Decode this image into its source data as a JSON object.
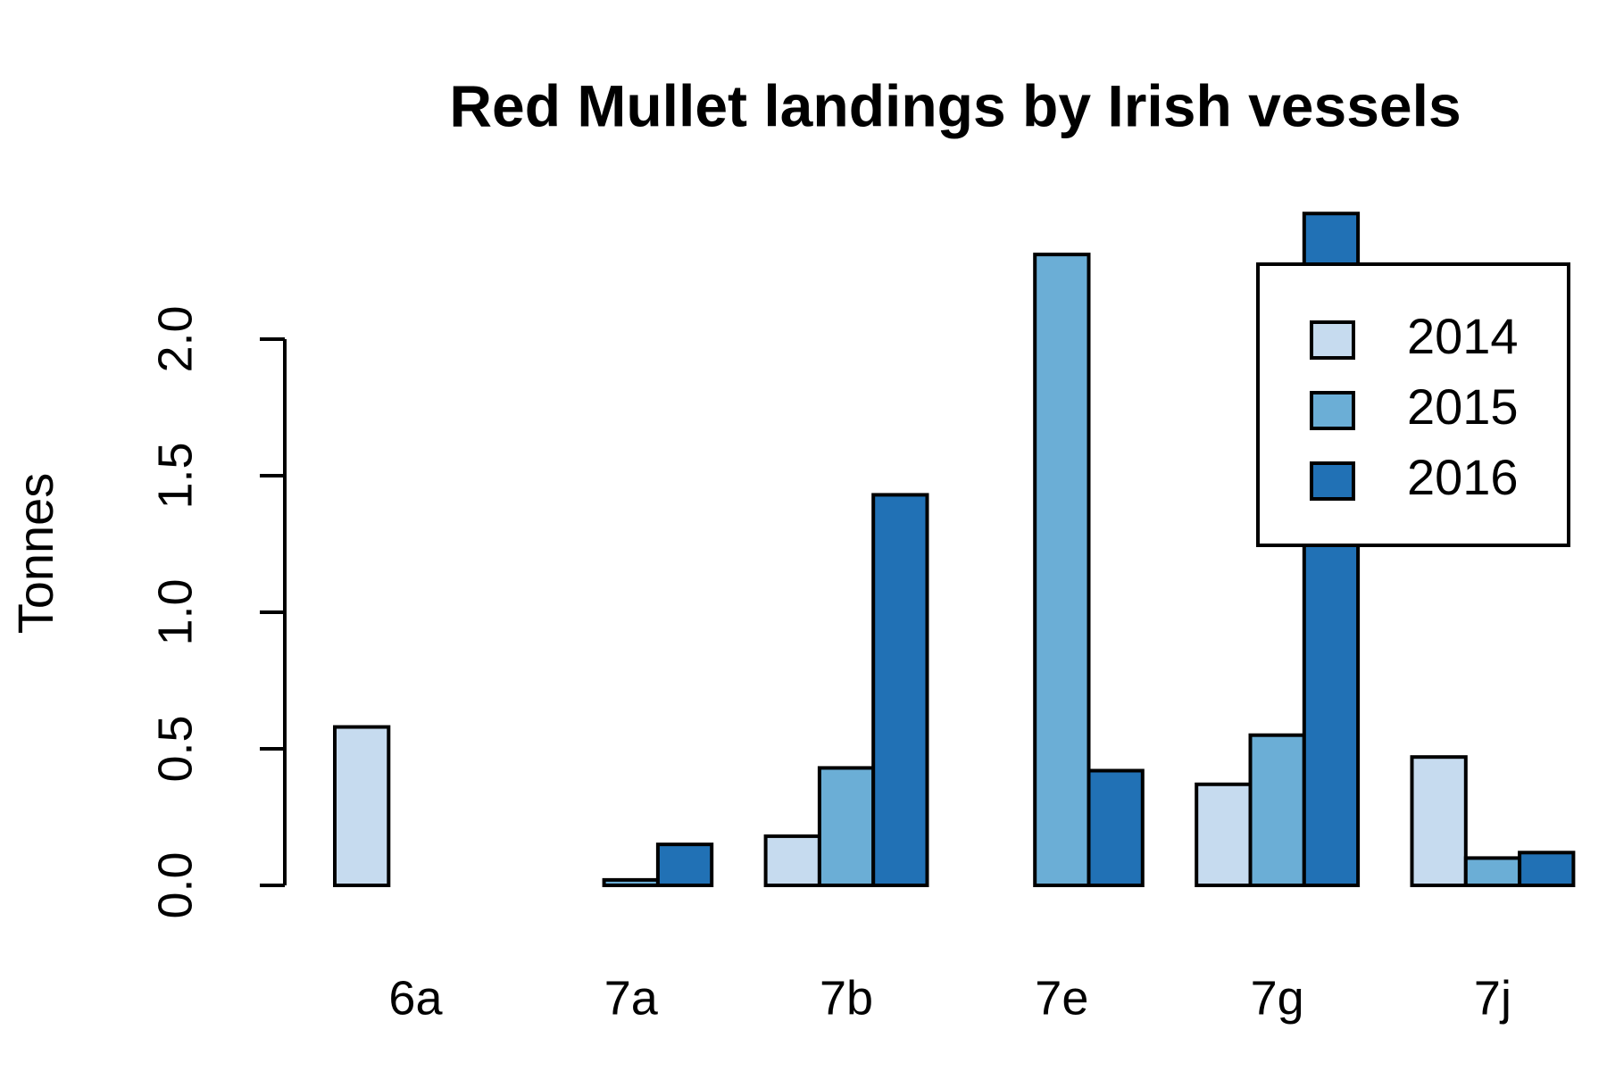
{
  "chart_data": {
    "type": "bar",
    "title": "Red Mullet landings by Irish vessels",
    "y_label": "Tonnes",
    "categories": [
      "6a",
      "7a",
      "7b",
      "7e",
      "7g",
      "7j"
    ],
    "series": [
      {
        "name": "2014",
        "color": "#c6dbef",
        "values": [
          0.58,
          0,
          0.18,
          0,
          0.37,
          0.47
        ]
      },
      {
        "name": "2015",
        "color": "#6baed6",
        "values": [
          0,
          0.02,
          0.43,
          2.31,
          0.55,
          0.1
        ]
      },
      {
        "name": "2016",
        "color": "#2171b5",
        "values": [
          0,
          0.15,
          1.43,
          0.42,
          2.46,
          0.12
        ]
      }
    ],
    "ylim": [
      0,
      2.5
    ],
    "yticks": [
      {
        "value": 0,
        "label": "0.0"
      },
      {
        "value": 0.5,
        "label": "0.5"
      },
      {
        "value": 1,
        "label": "1.0"
      },
      {
        "value": 1.5,
        "label": "1.5"
      },
      {
        "value": 2,
        "label": "2.0"
      }
    ],
    "legend": "topright"
  }
}
